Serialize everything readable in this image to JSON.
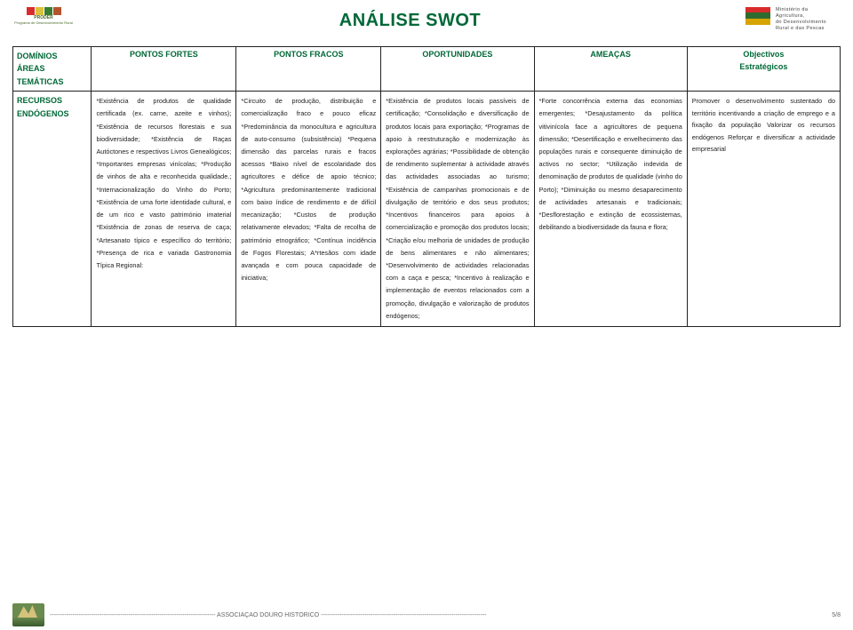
{
  "title": "ANÁLISE SWOT",
  "logo_left": {
    "name": "PRODER",
    "sub": "Programa de Desenvolvimento Rural",
    "colors": [
      "#d92b2b",
      "#dbc13a",
      "#3a7d2e",
      "#b4542d"
    ]
  },
  "logo_right": {
    "line1": "Ministério da",
    "line2": "Agricultura,",
    "line3": "do Desenvolvimento",
    "line4": "Rural e das Pescas",
    "stripe_colors": [
      "#d92b2b",
      "#2e6b2e",
      "#d6a400"
    ]
  },
  "colors": {
    "heading": "#006837",
    "border": "#222222",
    "text": "#222222",
    "background": "#ffffff"
  },
  "headers": {
    "dominios": "DOMÍNIOS\nÁREAS\nTEMÁTICAS",
    "fortes": "PONTOS FORTES",
    "fracos": "PONTOS FRACOS",
    "oportunidades": "OPORTUNIDADES",
    "ameacas": "AMEAÇAS",
    "objectivos": "Objectivos\nEstratégicos"
  },
  "row_label": "RECURSOS ENDÓGENOS",
  "cells": {
    "fortes": "*Existência de produtos de qualidade certificada (ex. carne, azeite e vinhos);\n*Existência de recursos florestais e sua biodiversidade;\n*Existência de Raças Autóctones e respectivos Livros Genealógicos;\n*Importantes empresas vinícolas;\n*Produção de vinhos de alta e reconhecida qualidade.;\n*Internacionalização do Vinho do Porto;\n*Existência de uma forte identidade cultural, e de um rico e vasto património imaterial\n*Existência de zonas de reserva de caça;\n*Artesanato típico e específico do território;\n*Presença de rica e variada Gastronomia Típica Regional:",
    "fracos": "*Circuito de produção, distribuição e comercialização fraco e pouco eficaz\n*Predominância da monocultura e agricultura de auto-consumo (subsistência)\n*Pequena dimensão das parcelas rurais e fracos acessos\n*Baixo nível de escolaridade dos agricultores e défice de apoio técnico;\n*Agricultura predominantemente tradicional com baixo índice de rendimento e de difícil mecanização;\n*Custos de produção relativamente elevados;\n*Falta de recolha de património etnográfico;\n*Contínua incidência de Fogos Florestais;\nA*rtesãos com idade avançada e com pouca capacidade de iniciativa;",
    "oportunidades": "*Existência de produtos locais passíveis de certificação;\n*Consolidação e diversificação de produtos locais para exportação;\n*Programas de apoio à reestruturação e modernização às explorações agrárias;\n*Possibilidade de obtenção de rendimento suplementar à actividade através das actividades associadas ao turismo;\n*Existência de campanhas promocionais e de divulgação de território e dos seus produtos;\n*Incentivos financeiros para apoios à comercialização e promoção dos produtos locais;\n*Criação e/ou melhoria de unidades de produção de bens alimentares e não alimentares;\n*Desenvolvimento de actividades relacionadas com a caça e pesca;\n*Incentivo à realização e implementação de eventos relacionados com a promoção, divulgação e valorização de produtos endógenos;",
    "ameacas": "*Forte concorrência externa das economias emergentes;\n*Desajustamento da política vitivinícola face a agricultores de pequena dimensão;\n*Desertificação e envelhecimento das populações rurais e consequente diminuição de activos no sector;\n*Utilização indevida de denominação de produtos de qualidade (vinho do Porto);\n*Diminuição ou mesmo desaparecimento de actividades artesanais e tradicionais;\n*Desflorestação e extinção de ecossistemas, debilitando a biodiversidade da fauna e flora;",
    "objectivos": "Promover o desenvolvimento sustentado do território incentivando a criação de emprego e a fixação da população\nValorizar os recursos endógenos\nReforçar e diversificar a actividade empresarial"
  },
  "footer": {
    "org": "ASSOCIAÇÃO DOURO HISTÓRICO",
    "page": "5/8",
    "dash_segment": "--------------------------------------------------------------------------------"
  }
}
